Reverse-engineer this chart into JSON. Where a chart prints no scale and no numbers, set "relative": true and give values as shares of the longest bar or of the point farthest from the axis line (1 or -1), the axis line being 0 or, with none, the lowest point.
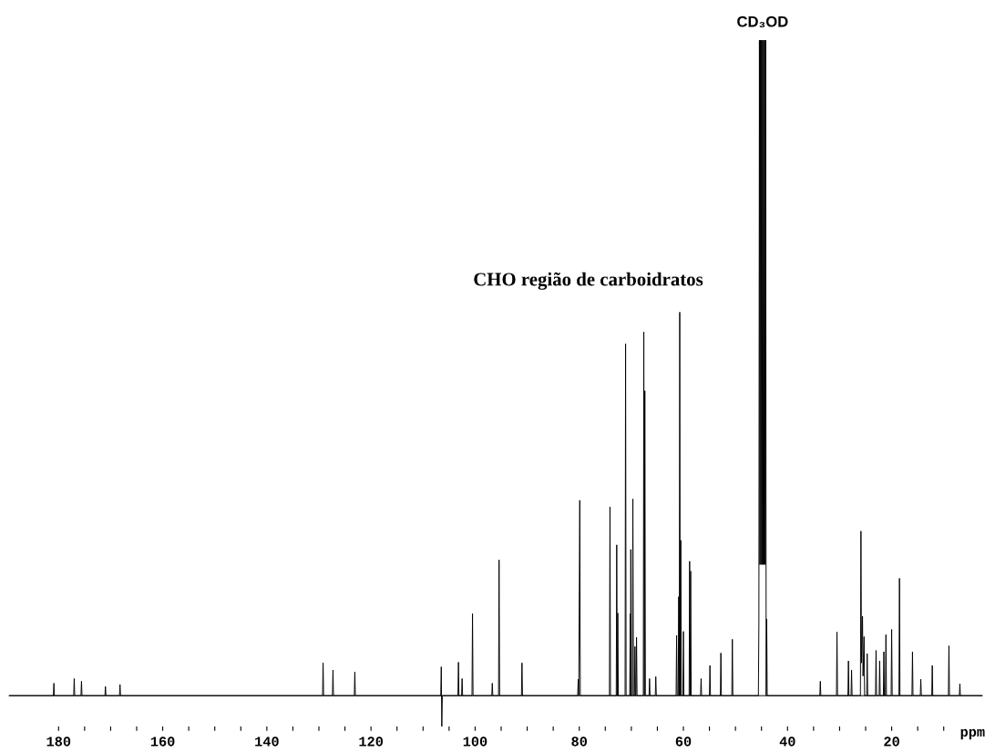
{
  "chart_data": {
    "type": "line",
    "relative": true,
    "xlabel": "ppm",
    "xlim": [
      189.5,
      2.6
    ],
    "xticks": [
      180,
      160,
      140,
      120,
      100,
      80,
      60,
      40,
      20,
      {
        "value": 175,
        "label": null
      },
      {
        "value": 170,
        "label": null
      },
      {
        "value": 165,
        "label": null
      },
      {
        "value": 155,
        "label": null
      },
      {
        "value": 150,
        "label": null
      },
      {
        "value": 145,
        "label": null
      },
      {
        "value": 135,
        "label": null
      },
      {
        "value": 130,
        "label": null
      },
      {
        "value": 125,
        "label": null
      },
      {
        "value": 115,
        "label": null
      },
      {
        "value": 110,
        "label": null
      },
      {
        "value": 105,
        "label": null
      },
      {
        "value": 95,
        "label": null
      },
      {
        "value": 90,
        "label": null
      },
      {
        "value": 85,
        "label": null
      },
      {
        "value": 75,
        "label": null
      },
      {
        "value": 70,
        "label": null
      },
      {
        "value": 65,
        "label": null
      },
      {
        "value": 55,
        "label": null
      },
      {
        "value": 50,
        "label": null
      },
      {
        "value": 45,
        "label": null
      },
      {
        "value": 35,
        "label": null
      },
      {
        "value": 30,
        "label": null
      },
      {
        "value": 25,
        "label": null
      },
      {
        "value": 15,
        "label": null
      },
      {
        "value": 10,
        "label": null
      }
    ],
    "annotations": [
      {
        "text": "CD₃OD",
        "x": 44.8,
        "y": 1.0
      },
      "CHO região de carboidratos"
    ],
    "series": [
      {
        "color": "#000000",
        "x": [
          189.5,
          181.0,
          180.9,
          180.8,
          177.1,
          177.0,
          176.9,
          175.7,
          175.6,
          175.5,
          171.1,
          171.0,
          170.9,
          168.3,
          168.2,
          168.1,
          129.3,
          129.2,
          129.1,
          127.4,
          127.3,
          127.2,
          123.2,
          123.1,
          123.0,
          106.6,
          106.5,
          106.4,
          106.3,
          103.3,
          103.2,
          103.1,
          102.6,
          102.5,
          102.4,
          100.6,
          100.5,
          100.4,
          96.8,
          96.7,
          96.6,
          95.5,
          95.4,
          95.3,
          91.1,
          91.0,
          90.9,
          80.3,
          80.2,
          80.1,
          79.9,
          79.8,
          74.2,
          74.1,
          74.0,
          72.9,
          72.8,
          72.7,
          72.6,
          72.5,
          71.2,
          71.1,
          71.0,
          70.3,
          70.2,
          70.15,
          70.1,
          70.0,
          69.8,
          69.7,
          69.6,
          69.4,
          69.3,
          69.2,
          69.1,
          69.0,
          68.9,
          67.7,
          67.6,
          67.5,
          67.4,
          67.3,
          66.6,
          66.5,
          66.4,
          65.4,
          65.3,
          65.2,
          61.4,
          61.3,
          61.2,
          61.0,
          60.9,
          60.8,
          60.7,
          60.6,
          60.5,
          60.4,
          60.1,
          60.0,
          59.9,
          58.9,
          58.8,
          58.7,
          58.6,
          58.5,
          56.7,
          56.6,
          56.5,
          55.0,
          54.9,
          54.8,
          52.9,
          52.8,
          52.7,
          50.7,
          50.6,
          50.5,
          45.6,
          45.5,
          45.4,
          45.3,
          45.2,
          45.1,
          45.0,
          44.9,
          44.8,
          44.7,
          44.6,
          44.5,
          44.4,
          44.3,
          44.2,
          44.1,
          44.0,
          43.9,
          33.8,
          33.7,
          33.6,
          30.6,
          30.5,
          30.4,
          28.4,
          28.3,
          28.2,
          27.8,
          27.7,
          27.6,
          26.0,
          25.9,
          25.8,
          25.6,
          25.5,
          25.3,
          25.2,
          24.8,
          24.7,
          24.6,
          23.1,
          23.0,
          22.9,
          22.4,
          22.3,
          22.2,
          21.6,
          21.5,
          21.4,
          21.2,
          21.1,
          21.0,
          20.1,
          20.0,
          19.9,
          18.6,
          18.5,
          18.4,
          16.1,
          16.0,
          15.9,
          14.5,
          14.4,
          14.3,
          12.3,
          12.2,
          12.1,
          9.1,
          9.0,
          8.9,
          7.0,
          6.9,
          6.8,
          2.6
        ],
        "values": [
          0,
          0,
          0.019,
          0,
          0,
          0.026,
          0,
          0,
          0.022,
          0,
          0,
          0.014,
          0,
          0,
          0.017,
          0,
          0,
          0.05,
          0,
          0,
          0.039,
          0,
          0,
          0.036,
          0,
          0,
          0.044,
          -0.047,
          0,
          0,
          0.051,
          0,
          0,
          0.026,
          0,
          0,
          0.125,
          0,
          0,
          0.019,
          0,
          0,
          0.207,
          0,
          0,
          0.05,
          0,
          0,
          0.025,
          0,
          0.298,
          0,
          0,
          0.288,
          0,
          0,
          0.23,
          0,
          0.126,
          0,
          0,
          0.537,
          0,
          0,
          0.125,
          0,
          0.223,
          0,
          0,
          0.3,
          0,
          0,
          0.075,
          0,
          0,
          0.089,
          0,
          0,
          0.555,
          0,
          0.465,
          0,
          0,
          0.026,
          0,
          0,
          0.029,
          0,
          0,
          0.092,
          0,
          0,
          0.151,
          0,
          0.585,
          0,
          0.237,
          0,
          0,
          0.098,
          0,
          0,
          0.205,
          0,
          0.19,
          0,
          0,
          0.026,
          0,
          0,
          0.046,
          0,
          0,
          0.065,
          0,
          0,
          0.086,
          0,
          0,
          0.11,
          1,
          0.2,
          1,
          0.2,
          1,
          0.2,
          1,
          0.2,
          1,
          0.2,
          1,
          0.2,
          1,
          0,
          0.117,
          0,
          0,
          0.022,
          0,
          0,
          0.097,
          0,
          0,
          0.053,
          0,
          0,
          0.039,
          0,
          0,
          0.251,
          0.05,
          0.121,
          0.03,
          0.09,
          0,
          0,
          0.064,
          0,
          0,
          0.069,
          0,
          0,
          0.053,
          0,
          0,
          0.067,
          0,
          0,
          0.093,
          0,
          0,
          0.101,
          0,
          0,
          0.179,
          0,
          0,
          0.067,
          0,
          0,
          0.025,
          0,
          0,
          0.046,
          0,
          0,
          0.076,
          0,
          0,
          0.018,
          0,
          0
        ]
      }
    ]
  }
}
